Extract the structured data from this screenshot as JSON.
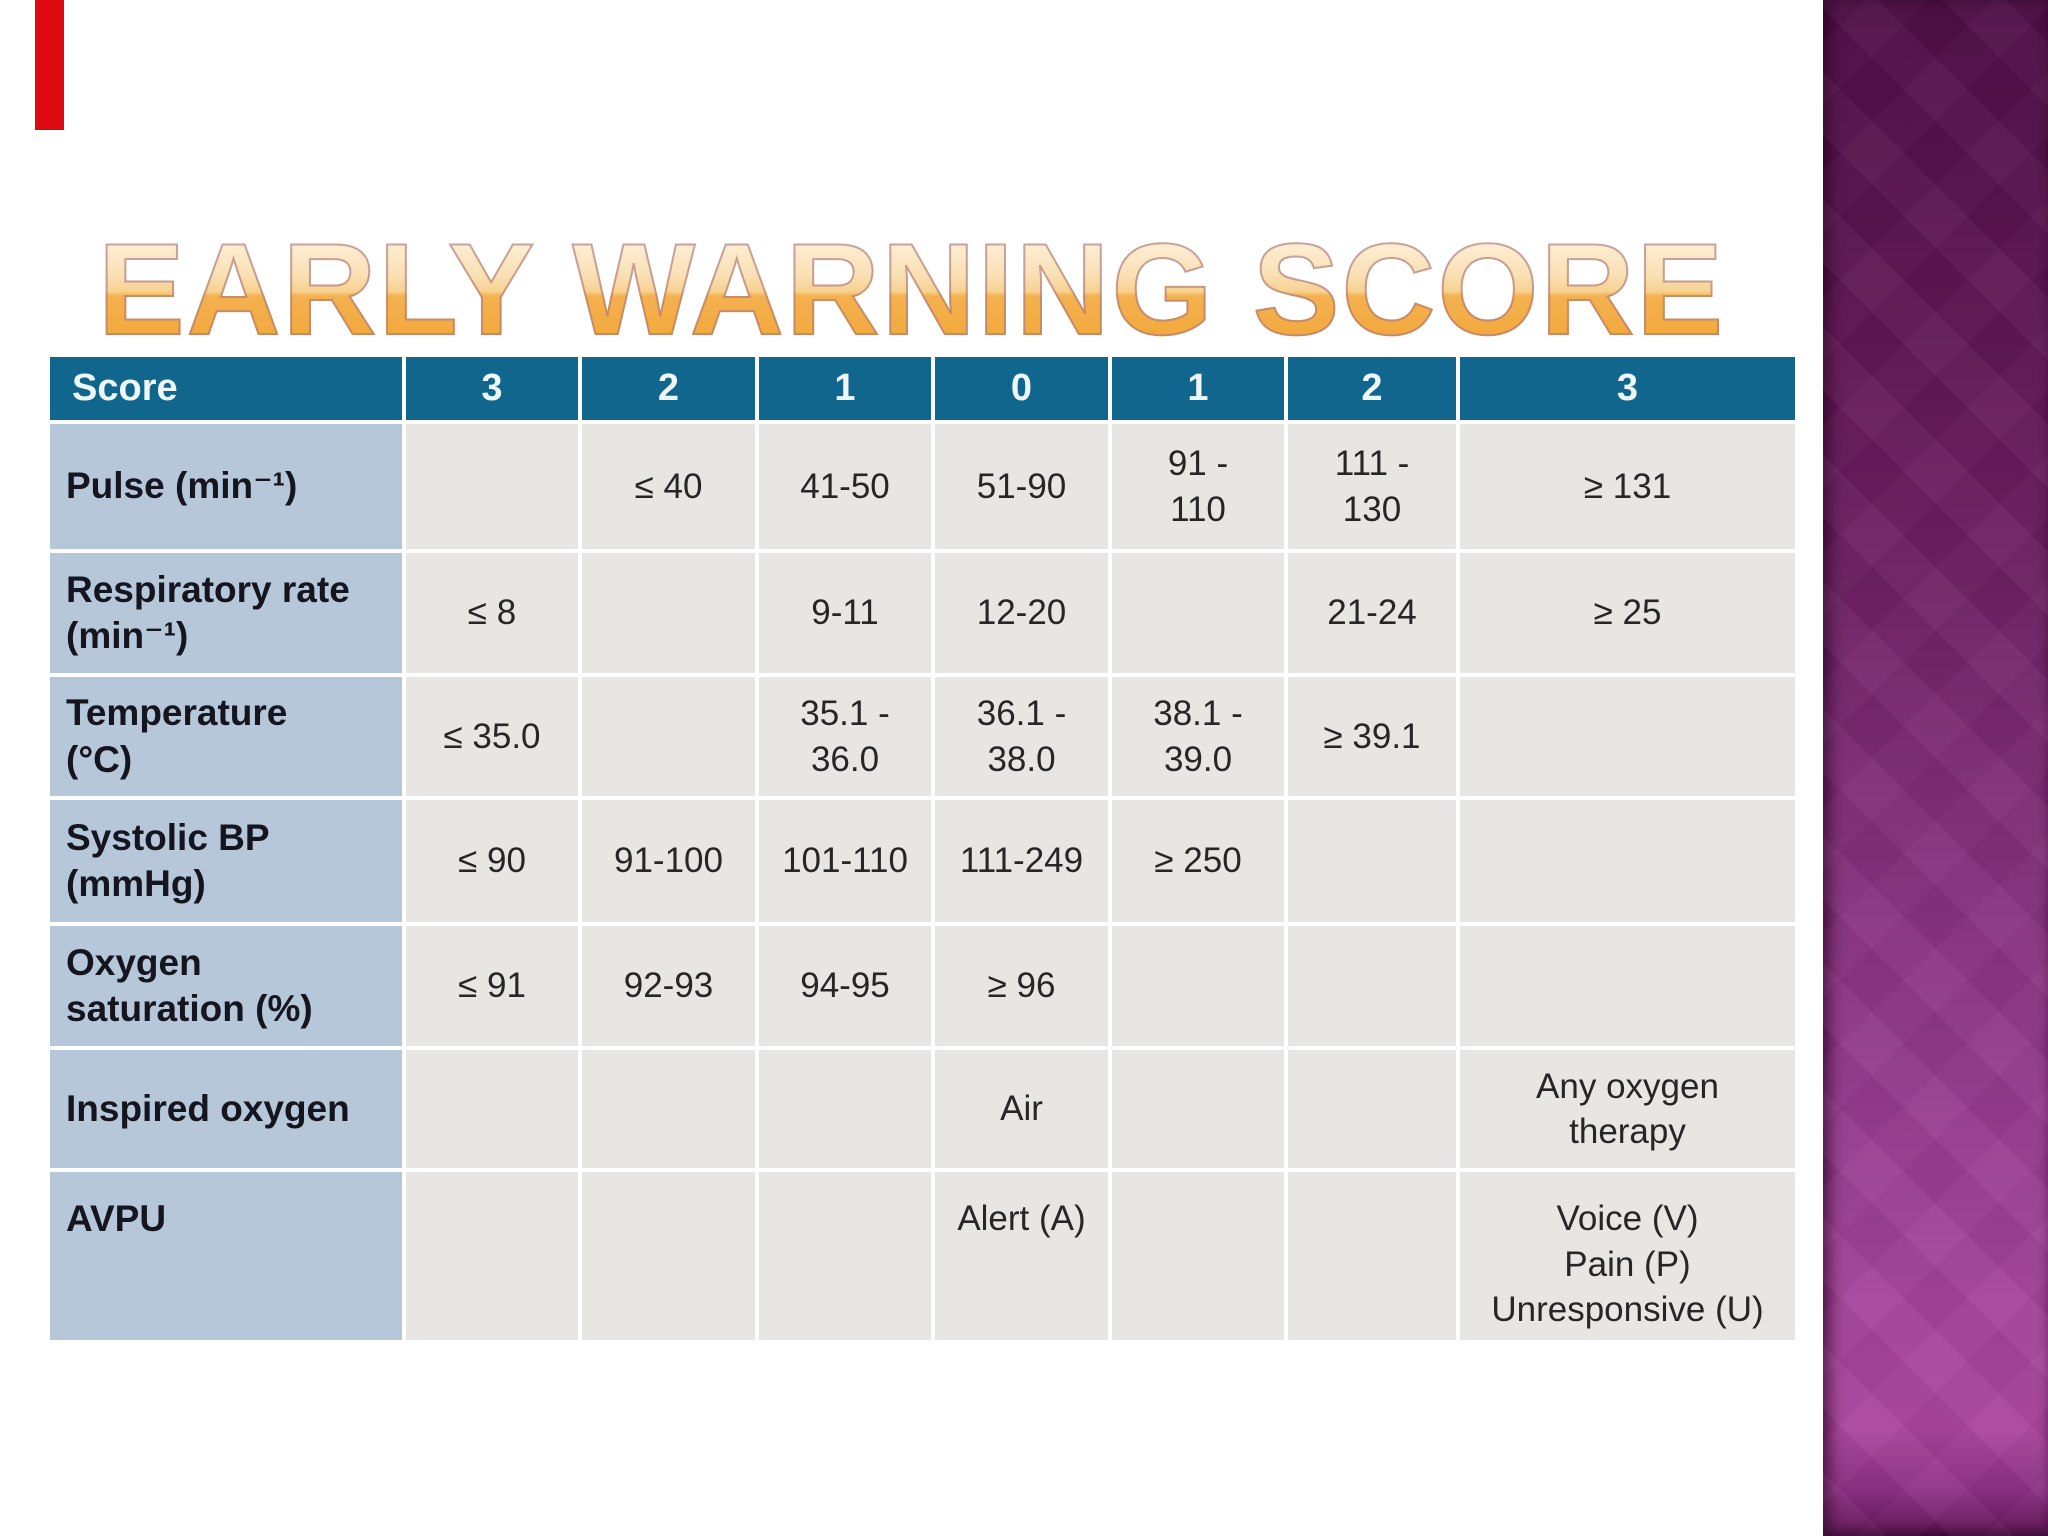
{
  "title": "EARLY WARNING SCORE",
  "accent": {
    "red_bar_color": "#de0a12"
  },
  "side_panel": {
    "top_color": "#4e0e45",
    "mid_color": "#82307a",
    "bottom_color": "#a9459e"
  },
  "colors": {
    "header_bg": "#10668c",
    "header_text": "#eef6fa",
    "label_bg": "#b5c7d9",
    "cell_bg": "#e7e6e3",
    "body_text": "#262626"
  },
  "table": {
    "header": [
      "Score",
      "3",
      "2",
      "1",
      "0",
      "1",
      "2",
      "3"
    ],
    "rows": [
      {
        "label": "Pulse (min⁻¹)",
        "cells": [
          "",
          "≤ 40",
          "41-50",
          "51-90",
          "91 -\n110",
          "111 -\n130",
          "≥ 131"
        ]
      },
      {
        "label": "Respiratory rate\n(min⁻¹)",
        "cells": [
          "≤ 8",
          "",
          "9-11",
          "12-20",
          "",
          "21-24",
          "≥ 25"
        ]
      },
      {
        "label": "Temperature\n(°C)",
        "cells": [
          "≤ 35.0",
          "",
          "35.1 -\n36.0",
          "36.1 -\n38.0",
          "38.1 -\n39.0",
          "≥ 39.1",
          ""
        ]
      },
      {
        "label": "Systolic BP\n(mmHg)",
        "cells": [
          "≤ 90",
          "91-100",
          "101-110",
          "111-249",
          "≥ 250",
          "",
          ""
        ]
      },
      {
        "label": "Oxygen\nsaturation (%)",
        "cells": [
          "≤ 91",
          "92-93",
          "94-95",
          "≥ 96",
          "",
          "",
          ""
        ]
      },
      {
        "label": "Inspired oxygen",
        "cells": [
          "",
          "",
          "",
          "Air",
          "",
          "",
          "Any oxygen\ntherapy"
        ]
      },
      {
        "label": "AVPU",
        "cells": [
          "",
          "",
          "",
          "Alert (A)",
          "",
          "",
          "Voice (V)\nPain (P)\nUnresponsive (U)"
        ]
      }
    ]
  }
}
